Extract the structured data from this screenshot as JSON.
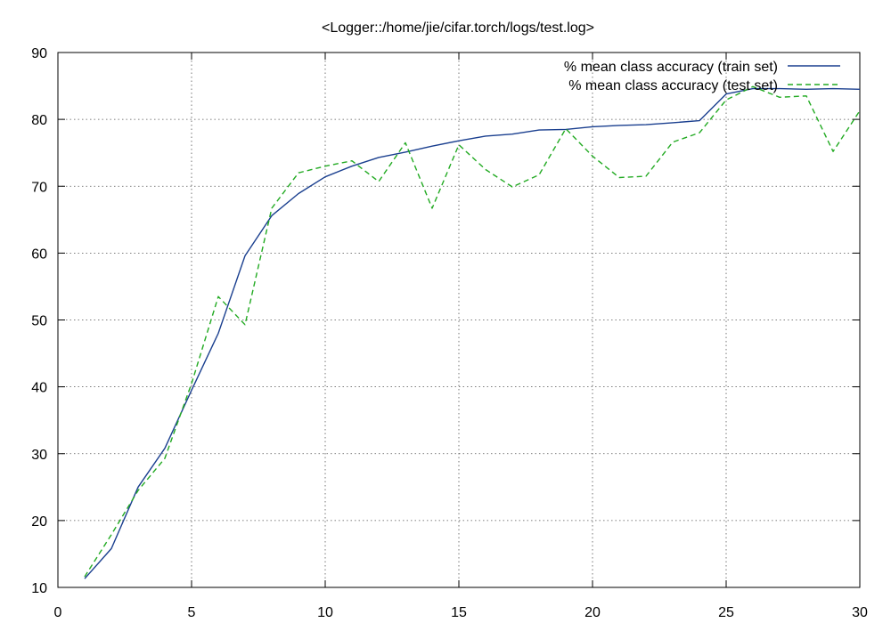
{
  "chart_data": {
    "type": "line",
    "title": "<Logger::/home/jie/cifar.torch/logs/test.log>",
    "xlabel": "",
    "ylabel": "",
    "xlim": [
      0,
      30
    ],
    "ylim": [
      10,
      90
    ],
    "xticks": [
      "0",
      "5",
      "10",
      "15",
      "20",
      "25",
      "30"
    ],
    "yticks": [
      "10",
      "20",
      "30",
      "40",
      "50",
      "60",
      "70",
      "80",
      "90"
    ],
    "grid": true,
    "legend_position": "top-right",
    "series": [
      {
        "name": "% mean class accuracy (train set)",
        "color": "#1a3f8f",
        "dash": "solid",
        "x": [
          1,
          2,
          3,
          4,
          5,
          6,
          7,
          8,
          9,
          10,
          11,
          12,
          13,
          14,
          15,
          16,
          17,
          18,
          19,
          20,
          21,
          22,
          23,
          24,
          25,
          26,
          27,
          28,
          29,
          30
        ],
        "values": [
          11.3,
          15.8,
          25.0,
          30.8,
          39.5,
          48.0,
          59.6,
          65.6,
          68.9,
          71.4,
          73.0,
          74.3,
          75.1,
          76.0,
          76.8,
          77.5,
          77.8,
          78.4,
          78.5,
          78.9,
          79.1,
          79.2,
          79.5,
          79.8,
          83.8,
          84.6,
          84.6,
          84.5,
          84.6,
          84.5
        ]
      },
      {
        "name": "% mean class accuracy (test set)",
        "color": "#22aa22",
        "dash": "dashed",
        "x": [
          1,
          2,
          3,
          4,
          5,
          6,
          7,
          8,
          9,
          10,
          11,
          12,
          13,
          14,
          15,
          16,
          17,
          18,
          19,
          20,
          21,
          22,
          23,
          24,
          25,
          26,
          27,
          28,
          29,
          30
        ],
        "values": [
          11.6,
          17.9,
          24.5,
          29.3,
          40.5,
          53.5,
          49.3,
          66.7,
          72.0,
          73.0,
          73.8,
          70.7,
          76.5,
          66.7,
          76.2,
          72.5,
          69.9,
          71.7,
          78.6,
          74.5,
          71.3,
          71.5,
          76.6,
          78.0,
          82.9,
          84.9,
          83.3,
          83.5,
          75.2,
          81.3
        ]
      }
    ]
  }
}
